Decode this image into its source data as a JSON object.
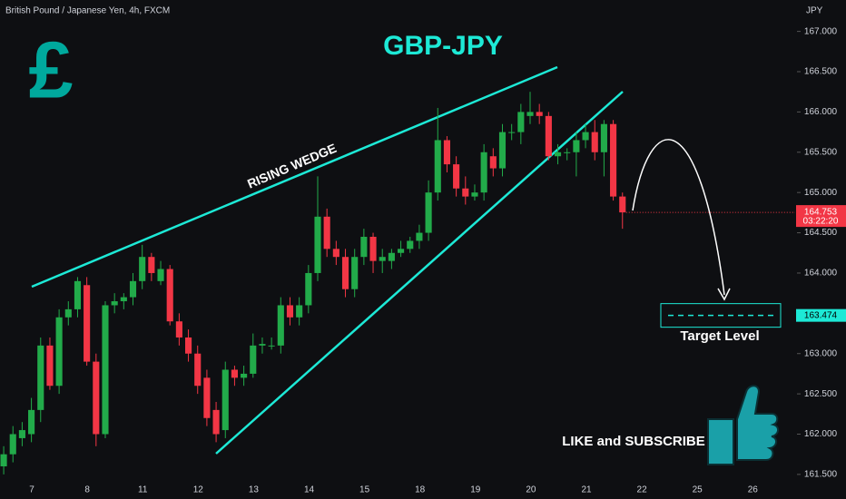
{
  "header": {
    "symbol_title": "British Pound / Japanese Yen, 4h, FXCM",
    "currency": "JPY",
    "logo_symbol": "£"
  },
  "chart_data": {
    "type": "candlestick",
    "title": "GBP-JPY",
    "up_color": "#22ab4a",
    "down_color": "#f23645",
    "open": [
      161.6,
      161.75,
      161.95,
      162.0,
      162.3,
      163.1,
      162.6,
      163.45,
      163.55,
      163.85,
      162.9,
      162.0,
      163.6,
      163.65,
      163.7,
      163.9,
      164.2,
      163.9,
      164.05,
      163.4,
      163.2,
      163.0,
      162.7,
      162.3,
      162.05,
      162.8,
      162.7,
      162.75,
      163.1,
      163.1,
      163.1,
      163.6,
      163.45,
      163.6,
      164.0,
      164.7,
      164.3,
      164.2,
      163.8,
      164.2,
      164.45,
      164.15,
      164.15,
      164.25,
      164.3,
      164.4,
      164.5,
      165.0,
      165.65,
      165.35,
      165.05,
      164.95,
      165.0,
      165.45,
      165.3,
      165.75,
      165.75,
      165.95,
      166.0,
      165.95,
      165.45,
      165.5,
      165.5,
      165.65,
      165.75,
      165.5,
      165.85,
      164.95
    ],
    "high": [
      161.85,
      162.1,
      162.15,
      162.45,
      163.2,
      163.2,
      163.55,
      163.65,
      163.95,
      163.95,
      163.0,
      163.65,
      163.75,
      163.75,
      164.0,
      164.35,
      164.25,
      164.15,
      164.1,
      163.5,
      163.3,
      163.1,
      162.8,
      162.4,
      162.9,
      162.85,
      162.85,
      163.25,
      163.2,
      163.2,
      163.7,
      163.7,
      163.7,
      164.1,
      165.2,
      164.8,
      164.4,
      164.3,
      164.3,
      164.55,
      164.5,
      164.3,
      164.3,
      164.4,
      164.45,
      164.6,
      165.15,
      166.05,
      165.7,
      165.45,
      165.2,
      165.1,
      165.6,
      165.55,
      165.85,
      165.85,
      166.1,
      166.25,
      166.1,
      166.0,
      165.6,
      165.55,
      165.75,
      165.85,
      165.9,
      165.9,
      165.9,
      165.0
    ],
    "low": [
      161.5,
      161.65,
      161.85,
      161.9,
      162.15,
      162.55,
      162.5,
      163.35,
      163.45,
      162.85,
      161.85,
      161.95,
      163.5,
      163.55,
      163.6,
      163.8,
      163.9,
      163.85,
      163.35,
      163.1,
      162.9,
      162.5,
      162.1,
      161.9,
      161.95,
      162.6,
      162.6,
      162.7,
      163.0,
      163.05,
      163.0,
      163.35,
      163.35,
      163.5,
      163.9,
      164.2,
      164.1,
      163.7,
      163.7,
      164.1,
      164.0,
      164.0,
      164.05,
      164.2,
      164.25,
      164.3,
      164.4,
      164.9,
      165.25,
      164.95,
      164.85,
      164.9,
      164.9,
      165.2,
      165.2,
      165.65,
      165.6,
      165.85,
      165.85,
      165.4,
      165.35,
      165.4,
      165.2,
      165.55,
      165.4,
      165.2,
      164.9,
      164.55
    ],
    "close": [
      161.75,
      162.0,
      162.05,
      162.3,
      163.1,
      162.6,
      163.45,
      163.55,
      163.9,
      162.9,
      162.0,
      163.6,
      163.65,
      163.7,
      163.9,
      164.2,
      164.0,
      164.05,
      163.4,
      163.2,
      163.0,
      162.6,
      162.2,
      162.0,
      162.8,
      162.7,
      162.75,
      163.1,
      163.12,
      163.1,
      163.6,
      163.45,
      163.6,
      164.0,
      164.7,
      164.3,
      164.2,
      163.8,
      164.2,
      164.45,
      164.15,
      164.2,
      164.25,
      164.3,
      164.4,
      164.5,
      165.0,
      165.65,
      165.35,
      165.05,
      164.95,
      165.0,
      165.5,
      165.3,
      165.75,
      165.75,
      166.0,
      166.0,
      165.95,
      165.45,
      165.5,
      165.5,
      165.65,
      165.75,
      165.5,
      165.85,
      164.95,
      164.753
    ],
    "countdown": "03:22:20",
    "xlim": [
      -0.4,
      85.6
    ],
    "xticks": [
      "7",
      "8",
      "11",
      "12",
      "13",
      "14",
      "15",
      "18",
      "19",
      "20",
      "21",
      "22",
      "25",
      "26"
    ],
    "ylim": [
      161.42,
      167.39
    ],
    "yticks": [
      {
        "value": 161.5,
        "label": "161.500"
      },
      {
        "value": 162,
        "label": "162.000"
      },
      {
        "value": 162.5,
        "label": "162.500"
      },
      {
        "value": 163,
        "label": "163.000"
      },
      {
        "value": 163.5,
        "label": "163.500"
      },
      {
        "value": 164,
        "label": "164.000"
      },
      {
        "value": 164.5,
        "label": "164.500"
      },
      {
        "value": 165,
        "label": "165.000"
      },
      {
        "value": 165.5,
        "label": "165.500"
      },
      {
        "value": 166,
        "label": "166.000"
      },
      {
        "value": 166.5,
        "label": "166.500"
      },
      {
        "value": 167,
        "label": "167.000"
      }
    ],
    "pattern_label": "RISING WEDGE",
    "target_price": 163.474,
    "target_label": "Target Level",
    "call_to_action": "LIKE and SUBSCRIBE"
  }
}
